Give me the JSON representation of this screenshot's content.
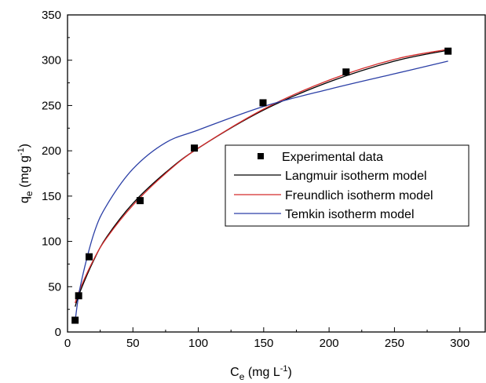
{
  "chart_data": {
    "type": "scatter",
    "xlabel": {
      "main": "C",
      "sub": "e",
      "unit": " (mg L",
      "sup": "-1",
      "close": ")"
    },
    "ylabel": {
      "main": "q",
      "sub": "e",
      "unit": " (mg g",
      "sup": "-1",
      "close": ")"
    },
    "xlim": [
      0,
      320
    ],
    "ylim": [
      0,
      350
    ],
    "xticks": [
      0,
      50,
      100,
      150,
      200,
      250,
      300
    ],
    "yticks": [
      0,
      50,
      100,
      150,
      200,
      250,
      300,
      350
    ],
    "grid": false,
    "legend_position": "center-right",
    "series": [
      {
        "name": "Experimental data",
        "kind": "points",
        "marker": "square",
        "color": "#000000",
        "x": [
          5.8,
          8.5,
          16.5,
          55.5,
          97,
          149.5,
          213,
          291
        ],
        "y": [
          13,
          40,
          83,
          145,
          203,
          253,
          287,
          310
        ]
      },
      {
        "name": "Langmuir isotherm model",
        "kind": "line",
        "color": "#000000",
        "x": [
          5.8,
          10,
          20,
          30,
          50,
          75,
          100,
          150,
          200,
          250,
          291
        ],
        "y": [
          28,
          46,
          79,
          105,
          142,
          176,
          203,
          245,
          276,
          299,
          311
        ]
      },
      {
        "name": "Freundlich isotherm model",
        "kind": "line",
        "color": "#d42a2a",
        "x": [
          5.8,
          10,
          20,
          30,
          50,
          75,
          100,
          150,
          200,
          250,
          291
        ],
        "y": [
          32,
          49,
          80,
          104,
          140,
          175,
          203,
          246,
          278,
          301,
          312
        ]
      },
      {
        "name": "Temkin isotherm model",
        "kind": "line",
        "color": "#2b3fa6",
        "x": [
          5.8,
          10,
          20,
          30,
          50,
          75,
          100,
          150,
          200,
          250,
          291
        ],
        "y": [
          12,
          52,
          108,
          140,
          180,
          209,
          223,
          249,
          268,
          285,
          299
        ]
      }
    ]
  }
}
